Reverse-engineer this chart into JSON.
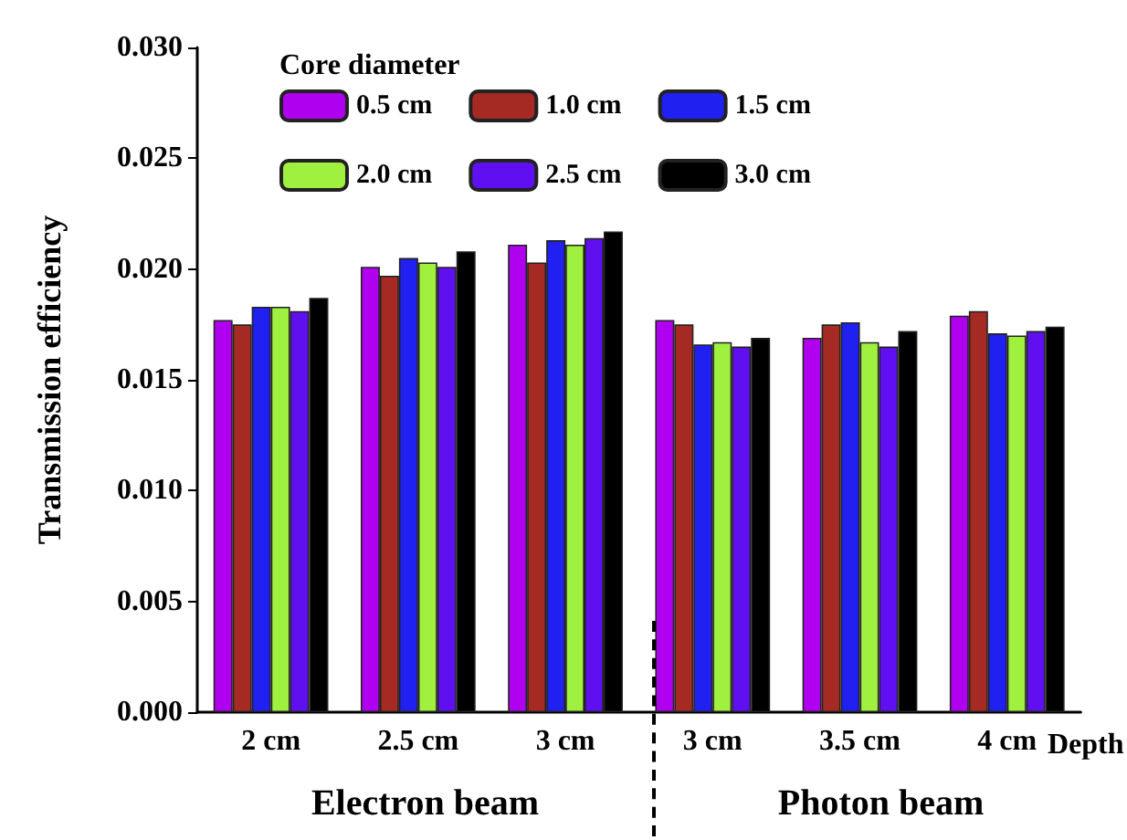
{
  "chart_data": {
    "type": "bar",
    "xlabel": "Depth",
    "ylabel": "Transmission efficiency",
    "legend_title": "Core diameter",
    "categories": [
      "2 cm",
      "2.5 cm",
      "3 cm",
      "3 cm",
      "3.5 cm",
      "4 cm"
    ],
    "series": [
      {
        "name": "0.5 cm",
        "color": "#b000f0",
        "values": [
          0.0177,
          0.0201,
          0.0211,
          0.0177,
          0.0169,
          0.0179
        ]
      },
      {
        "name": "1.0 cm",
        "color": "#a52a24",
        "values": [
          0.0175,
          0.0197,
          0.0203,
          0.0175,
          0.0175,
          0.0181
        ]
      },
      {
        "name": "1.5 cm",
        "color": "#2020f0",
        "values": [
          0.0183,
          0.0205,
          0.0213,
          0.0166,
          0.0176,
          0.0171
        ]
      },
      {
        "name": "2.0 cm",
        "color": "#a0f040",
        "values": [
          0.0183,
          0.0203,
          0.0211,
          0.0167,
          0.0167,
          0.017
        ]
      },
      {
        "name": "2.5 cm",
        "color": "#6010f0",
        "values": [
          0.0181,
          0.0201,
          0.0214,
          0.0165,
          0.0165,
          0.0172
        ]
      },
      {
        "name": "3.0 cm",
        "color": "#000000",
        "values": [
          0.0187,
          0.0208,
          0.0217,
          0.0169,
          0.0172,
          0.0174
        ]
      }
    ],
    "ylim": [
      0,
      0.03
    ],
    "yticks": [
      {
        "value": 0,
        "label": "0.000"
      },
      {
        "value": 0.005,
        "label": "0.005"
      },
      {
        "value": 0.01,
        "label": "0.010"
      },
      {
        "value": 0.015,
        "label": "0.015"
      },
      {
        "value": 0.02,
        "label": "0.020"
      },
      {
        "value": 0.025,
        "label": "0.025"
      },
      {
        "value": 0.03,
        "label": "0.030"
      }
    ],
    "grid": false,
    "legend": "top",
    "annotations": [
      "Electron beam",
      "Photon beam"
    ]
  }
}
